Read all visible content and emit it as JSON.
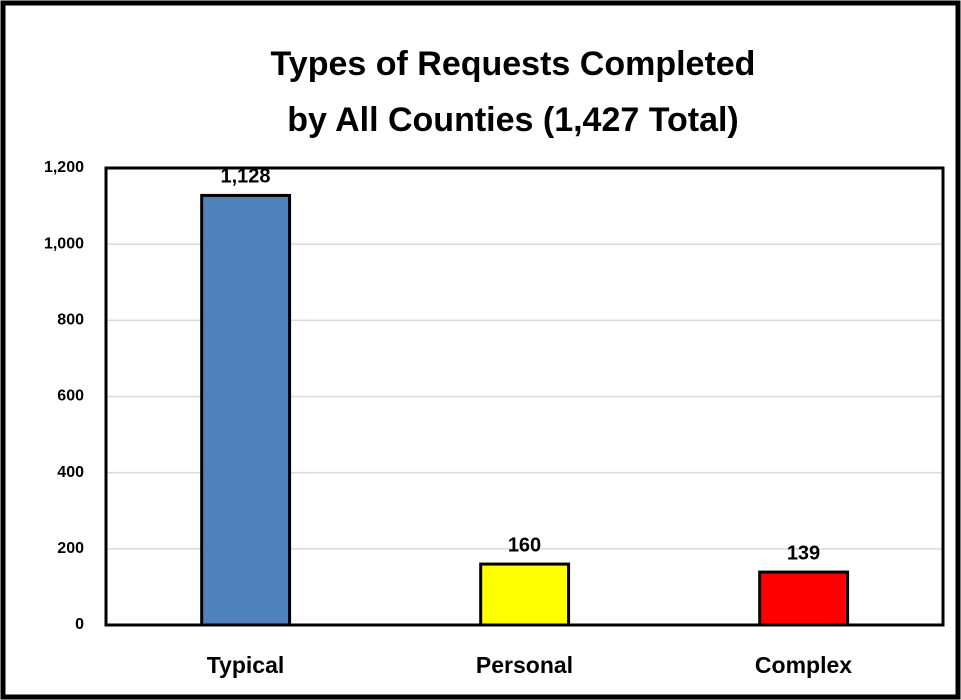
{
  "chart_data": {
    "type": "bar",
    "title": [
      "Types of Requests Completed",
      "by All Counties (1,427 Total)"
    ],
    "categories": [
      "Typical",
      "Personal",
      "Complex"
    ],
    "values": [
      1128,
      160,
      139
    ],
    "value_labels": [
      "1,128",
      "160",
      "139"
    ],
    "colors": [
      "#4f81bd",
      "#ffff00",
      "#ff0000"
    ],
    "ylim": [
      0,
      1200
    ],
    "yticks": [
      0,
      200,
      400,
      600,
      800,
      {
        "value": 1000,
        "label": "1,000"
      },
      {
        "value": 1200,
        "label": "1,200"
      }
    ],
    "grid": true
  }
}
